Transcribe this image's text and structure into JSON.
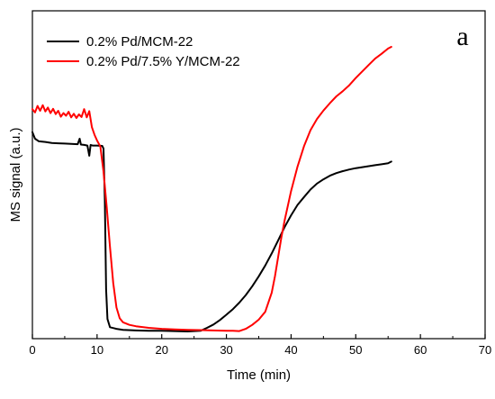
{
  "chart_data": {
    "type": "line",
    "panel_label": "a",
    "xlabel": "Time (min)",
    "ylabel": "MS signal (a.u.)",
    "xlim": [
      0,
      70
    ],
    "ylim": [
      0,
      100
    ],
    "xticks": [
      0,
      10,
      20,
      30,
      40,
      50,
      60,
      70
    ],
    "y_tick_labels": false,
    "grid": false,
    "legend_position": "top-left",
    "series": [
      {
        "name": "0.2% Pd/MCM-22",
        "color": "#000000",
        "points": [
          [
            0,
            63
          ],
          [
            0.4,
            61
          ],
          [
            1,
            60.2
          ],
          [
            2,
            60
          ],
          [
            3,
            59.7
          ],
          [
            4,
            59.6
          ],
          [
            5,
            59.5
          ],
          [
            6,
            59.4
          ],
          [
            7,
            59.3
          ],
          [
            7.3,
            61
          ],
          [
            7.5,
            59.2
          ],
          [
            8,
            59.1
          ],
          [
            8.5,
            58.9
          ],
          [
            8.8,
            55.8
          ],
          [
            9,
            59.1
          ],
          [
            9.3,
            58.9
          ],
          [
            10,
            58.9
          ],
          [
            10.8,
            58.8
          ],
          [
            11,
            58
          ],
          [
            11.2,
            42
          ],
          [
            11.4,
            15
          ],
          [
            11.6,
            6
          ],
          [
            12,
            3.5
          ],
          [
            13,
            3
          ],
          [
            14,
            2.7
          ],
          [
            16,
            2.5
          ],
          [
            18,
            2.4
          ],
          [
            20,
            2.4
          ],
          [
            22,
            2.3
          ],
          [
            24,
            2.2
          ],
          [
            26,
            2.4
          ],
          [
            27,
            3.3
          ],
          [
            28,
            4.3
          ],
          [
            29,
            5.7
          ],
          [
            30,
            7.3
          ],
          [
            31,
            9
          ],
          [
            32,
            11
          ],
          [
            33,
            13.3
          ],
          [
            34,
            16
          ],
          [
            35,
            19
          ],
          [
            36,
            22.3
          ],
          [
            37,
            26
          ],
          [
            38,
            30
          ],
          [
            39,
            34
          ],
          [
            40,
            37.6
          ],
          [
            41,
            40.8
          ],
          [
            42,
            43.2
          ],
          [
            43,
            45.5
          ],
          [
            44,
            47.3
          ],
          [
            45,
            48.6
          ],
          [
            46,
            49.7
          ],
          [
            47,
            50.5
          ],
          [
            48,
            51.1
          ],
          [
            49,
            51.6
          ],
          [
            50,
            52
          ],
          [
            51,
            52.3
          ],
          [
            52,
            52.6
          ],
          [
            53,
            52.9
          ],
          [
            54,
            53.2
          ],
          [
            55,
            53.5
          ],
          [
            55.5,
            54
          ]
        ]
      },
      {
        "name": "0.2% Pd/7.5% Y/MCM-22",
        "color": "#ff0000",
        "points": [
          [
            0,
            70
          ],
          [
            0.4,
            69
          ],
          [
            0.8,
            71
          ],
          [
            1.2,
            69.5
          ],
          [
            1.6,
            71.2
          ],
          [
            2,
            69.3
          ],
          [
            2.4,
            70.5
          ],
          [
            2.8,
            68.8
          ],
          [
            3.2,
            70.1
          ],
          [
            3.6,
            68.5
          ],
          [
            4,
            69.5
          ],
          [
            4.4,
            67.7
          ],
          [
            4.8,
            68.8
          ],
          [
            5.2,
            68
          ],
          [
            5.6,
            69.2
          ],
          [
            6,
            67.5
          ],
          [
            6.4,
            68.6
          ],
          [
            6.8,
            67.3
          ],
          [
            7.2,
            68.4
          ],
          [
            7.6,
            67.6
          ],
          [
            8,
            70
          ],
          [
            8.4,
            67.5
          ],
          [
            8.8,
            69.4
          ],
          [
            9.2,
            64.5
          ],
          [
            9.6,
            62.2
          ],
          [
            10,
            60.4
          ],
          [
            10.5,
            58.6
          ],
          [
            11,
            51
          ],
          [
            11.5,
            40
          ],
          [
            12,
            28
          ],
          [
            12.5,
            17
          ],
          [
            13,
            9.5
          ],
          [
            13.5,
            6.2
          ],
          [
            14,
            5
          ],
          [
            15,
            4.2
          ],
          [
            16,
            3.8
          ],
          [
            18,
            3.3
          ],
          [
            20,
            3
          ],
          [
            22,
            2.8
          ],
          [
            24,
            2.7
          ],
          [
            26,
            2.6
          ],
          [
            28,
            2.5
          ],
          [
            30,
            2.4
          ],
          [
            31,
            2.4
          ],
          [
            32,
            2.3
          ],
          [
            33,
            3
          ],
          [
            34,
            4.2
          ],
          [
            35,
            5.8
          ],
          [
            36,
            8.2
          ],
          [
            37,
            14
          ],
          [
            37.5,
            19
          ],
          [
            38,
            25
          ],
          [
            38.5,
            31
          ],
          [
            39,
            36
          ],
          [
            40,
            45
          ],
          [
            41,
            52.5
          ],
          [
            42,
            58.7
          ],
          [
            43,
            63.6
          ],
          [
            44,
            67
          ],
          [
            45,
            69.6
          ],
          [
            46,
            71.8
          ],
          [
            47,
            73.9
          ],
          [
            48,
            75.5
          ],
          [
            49,
            77.3
          ],
          [
            50,
            79.5
          ],
          [
            51,
            81.5
          ],
          [
            52,
            83.5
          ],
          [
            53,
            85.4
          ],
          [
            54,
            86.9
          ],
          [
            55,
            88.5
          ],
          [
            55.5,
            89
          ]
        ]
      }
    ]
  }
}
